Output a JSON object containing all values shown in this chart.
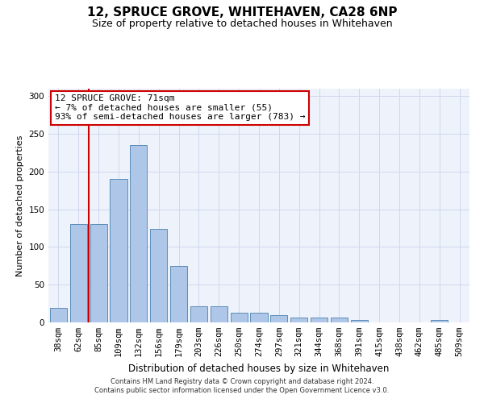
{
  "title": "12, SPRUCE GROVE, WHITEHAVEN, CA28 6NP",
  "subtitle": "Size of property relative to detached houses in Whitehaven",
  "xlabel": "Distribution of detached houses by size in Whitehaven",
  "ylabel": "Number of detached properties",
  "categories": [
    "38sqm",
    "62sqm",
    "85sqm",
    "109sqm",
    "132sqm",
    "156sqm",
    "179sqm",
    "203sqm",
    "226sqm",
    "250sqm",
    "274sqm",
    "297sqm",
    "321sqm",
    "344sqm",
    "368sqm",
    "391sqm",
    "415sqm",
    "438sqm",
    "462sqm",
    "485sqm",
    "509sqm"
  ],
  "values": [
    19,
    130,
    130,
    190,
    235,
    124,
    75,
    21,
    21,
    13,
    13,
    10,
    6,
    6,
    6,
    3,
    0,
    0,
    0,
    3,
    0
  ],
  "bar_color": "#aec6e8",
  "bar_edge_color": "#5b8db8",
  "vline_x_idx": 1,
  "vline_color": "#cc0000",
  "annotation_text": "12 SPRUCE GROVE: 71sqm\n← 7% of detached houses are smaller (55)\n93% of semi-detached houses are larger (783) →",
  "annotation_box_color": "#ffffff",
  "annotation_box_edge_color": "#cc0000",
  "ylim": [
    0,
    310
  ],
  "yticks": [
    0,
    50,
    100,
    150,
    200,
    250,
    300
  ],
  "footer_line1": "Contains HM Land Registry data © Crown copyright and database right 2024.",
  "footer_line2": "Contains public sector information licensed under the Open Government Licence v3.0.",
  "bg_color": "#eef2fb",
  "grid_color": "#d0d8ee",
  "title_fontsize": 11,
  "subtitle_fontsize": 9,
  "ylabel_fontsize": 8,
  "xlabel_fontsize": 8.5,
  "tick_fontsize": 7.5,
  "annotation_fontsize": 8,
  "footer_fontsize": 6
}
